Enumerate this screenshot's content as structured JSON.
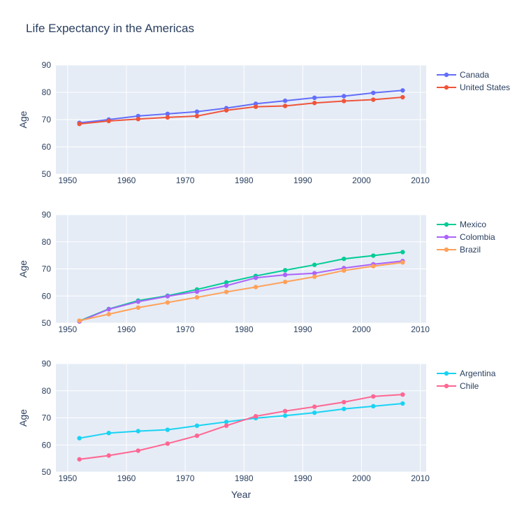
{
  "chart_data": {
    "type": "line",
    "title": "Life Expectancy in the Americas",
    "xlabel": "Year",
    "ylabel": "Age",
    "x_ticks": [
      1950,
      1960,
      1970,
      1980,
      1990,
      2000,
      2010
    ],
    "y_ticks": [
      50,
      60,
      70,
      80,
      90
    ],
    "xlim": [
      1948,
      2011
    ],
    "ylim": [
      50,
      90
    ],
    "grid": true,
    "legend_position": "right",
    "x": [
      1952,
      1957,
      1962,
      1967,
      1972,
      1977,
      1982,
      1987,
      1992,
      1997,
      2002,
      2007
    ],
    "panels": [
      {
        "series": [
          {
            "name": "Canada",
            "color": "#636efa",
            "values": [
              68.8,
              70.0,
              71.3,
              72.1,
              72.9,
              74.2,
              75.8,
              76.9,
              78.0,
              78.6,
              79.8,
              80.7
            ]
          },
          {
            "name": "United States",
            "color": "#ef553b",
            "values": [
              68.4,
              69.5,
              70.2,
              70.8,
              71.3,
              73.4,
              74.7,
              75.0,
              76.1,
              76.8,
              77.3,
              78.2
            ]
          }
        ]
      },
      {
        "series": [
          {
            "name": "Mexico",
            "color": "#00cc96",
            "values": [
              50.8,
              55.2,
              58.3,
              60.1,
              62.4,
              65.0,
              67.4,
              69.5,
              71.5,
              73.7,
              74.9,
              76.2
            ]
          },
          {
            "name": "Colombia",
            "color": "#ab63fa",
            "values": [
              50.6,
              55.1,
              57.9,
              59.9,
              61.6,
              63.8,
              66.7,
              67.8,
              68.4,
              70.3,
              71.7,
              72.9
            ]
          },
          {
            "name": "Brazil",
            "color": "#ffa15a",
            "values": [
              50.9,
              53.3,
              55.7,
              57.6,
              59.5,
              61.5,
              63.3,
              65.2,
              67.1,
              69.4,
              71.0,
              72.4
            ]
          }
        ]
      },
      {
        "series": [
          {
            "name": "Argentina",
            "color": "#19d3f3",
            "values": [
              62.5,
              64.4,
              65.1,
              65.6,
              67.1,
              68.5,
              69.9,
              70.8,
              71.9,
              73.3,
              74.3,
              75.3
            ]
          },
          {
            "name": "Chile",
            "color": "#ff6692",
            "values": [
              54.7,
              56.1,
              57.9,
              60.5,
              63.4,
              67.1,
              70.6,
              72.5,
              74.1,
              75.8,
              77.9,
              78.6
            ]
          }
        ]
      }
    ]
  }
}
